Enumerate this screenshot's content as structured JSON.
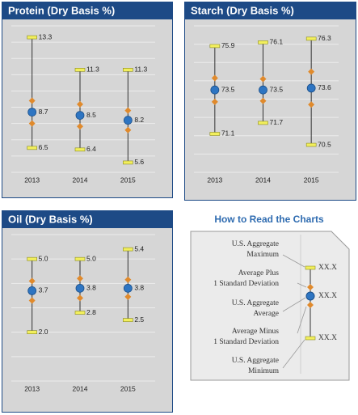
{
  "chart_data": [
    {
      "type": "range",
      "title": "Protein (Dry Basis %)",
      "categories": [
        "2013",
        "2014",
        "2015"
      ],
      "max": [
        13.3,
        11.3,
        11.3
      ],
      "mean": [
        8.7,
        8.5,
        8.2
      ],
      "min": [
        6.5,
        6.4,
        5.6
      ],
      "sd": [
        0.7,
        0.68,
        0.6
      ],
      "ylim": [
        5,
        14
      ],
      "yticks": [
        5,
        6,
        7,
        8,
        9,
        10,
        11,
        12,
        13,
        14
      ],
      "grid": true
    },
    {
      "type": "range",
      "title": "Starch (Dry Basis %)",
      "categories": [
        "2013",
        "2014",
        "2015"
      ],
      "max": [
        75.9,
        76.1,
        76.3
      ],
      "mean": [
        73.5,
        73.5,
        73.6
      ],
      "min": [
        71.1,
        71.7,
        70.5
      ],
      "sd": [
        0.65,
        0.6,
        0.9
      ],
      "ylim": [
        69,
        77
      ],
      "yticks": [
        69,
        70,
        71,
        72,
        73,
        74,
        75,
        76,
        77
      ],
      "grid": true
    },
    {
      "type": "range",
      "title": "Oil (Dry Basis %)",
      "categories": [
        "2013",
        "2014",
        "2015"
      ],
      "max": [
        5.0,
        5.0,
        5.4
      ],
      "max_labels": [
        "5.0",
        "5.0",
        "5.4"
      ],
      "mean": [
        3.7,
        3.8,
        3.8
      ],
      "min": [
        2.0,
        2.8,
        2.5
      ],
      "min_labels": [
        "2.0",
        "2.8",
        "2.5"
      ],
      "sd": [
        0.4,
        0.4,
        0.35
      ],
      "ylim": [
        0,
        6
      ],
      "yticks": [
        0,
        1,
        2,
        3,
        4,
        5,
        6
      ],
      "grid": true
    }
  ],
  "how_to_read": {
    "title": "How to Read the Charts",
    "items": [
      [
        "U.S. Aggregate",
        "Maximum"
      ],
      [
        "Average Plus",
        "1 Standard Deviation"
      ],
      [
        "U.S. Aggregate",
        "Average"
      ],
      [
        "Average Minus",
        "1 Standard Deviation"
      ],
      [
        "U.S. Aggregate",
        "Minimum"
      ]
    ],
    "value_text": "XX.X"
  }
}
